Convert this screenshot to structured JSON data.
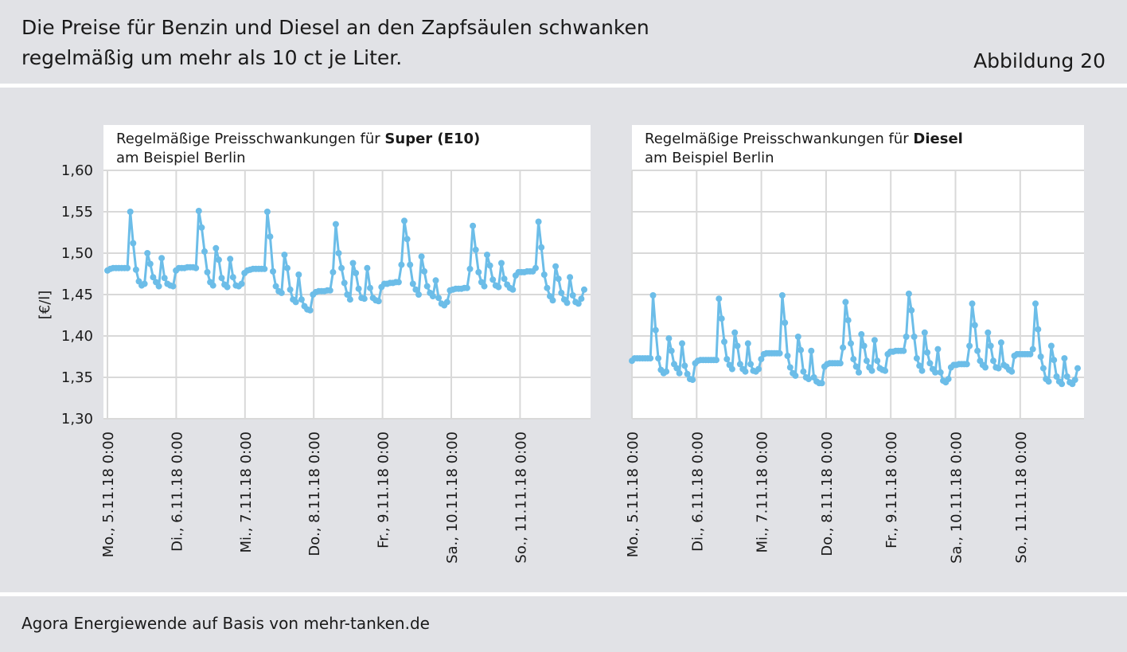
{
  "header": {
    "title_line1": "Die Preise für Benzin und Diesel an den Zapfsäulen schwanken",
    "title_line2": "regelmäßig um mehr als 10 ct je Liter.",
    "figure_label": "Abbildung 20"
  },
  "footer": {
    "source": "Agora Energiewende auf Basis von mehr-tanken.de"
  },
  "colors": {
    "background": "#e1e2e6",
    "plot_bg": "#ffffff",
    "series": "#6cbde8"
  },
  "chart_data": [
    {
      "type": "line",
      "title_prefix": "Regelmäßige Preisschwankungen für ",
      "title_bold": "Super (E10)",
      "title_line2": "am Beispiel Berlin",
      "ylabel": "[€/l]",
      "ylim": [
        1.3,
        1.6
      ],
      "yticks": [
        "1,60",
        "1,55",
        "1,50",
        "1,45",
        "1,40",
        "1,35",
        "1,30"
      ],
      "xticks": [
        "Mo., 5.11.18 0:00",
        "Di., 6.11.18 0:00",
        "Mi., 7.11.18 0:00",
        "Do., 8.11.18 0:00",
        "Fr., 9.11.18 0:00",
        "Sa., 10.11.18 0:00",
        "So., 11.11.18 0:00"
      ],
      "grid": true,
      "series": [
        {
          "values": [
            1.479,
            1.481,
            1.482,
            1.482,
            1.482,
            1.482,
            1.482,
            1.482,
            1.55,
            1.512,
            1.48,
            1.466,
            1.461,
            1.463,
            1.5,
            1.487,
            1.471,
            1.465,
            1.46,
            1.494,
            1.47,
            1.463,
            1.461,
            1.46,
            1.479,
            1.482,
            1.482,
            1.482,
            1.483,
            1.483,
            1.483,
            1.482,
            1.551,
            1.531,
            1.502,
            1.477,
            1.465,
            1.461,
            1.506,
            1.492,
            1.47,
            1.462,
            1.459,
            1.493,
            1.471,
            1.461,
            1.46,
            1.463,
            1.476,
            1.479,
            1.48,
            1.481,
            1.481,
            1.481,
            1.481,
            1.481,
            1.55,
            1.52,
            1.478,
            1.46,
            1.454,
            1.452,
            1.498,
            1.482,
            1.456,
            1.444,
            1.441,
            1.474,
            1.444,
            1.436,
            1.432,
            1.431,
            1.45,
            1.453,
            1.454,
            1.454,
            1.454,
            1.455,
            1.455,
            1.477,
            1.535,
            1.5,
            1.482,
            1.464,
            1.45,
            1.444,
            1.488,
            1.476,
            1.457,
            1.446,
            1.445,
            1.482,
            1.458,
            1.446,
            1.443,
            1.442,
            1.459,
            1.463,
            1.463,
            1.464,
            1.464,
            1.465,
            1.465,
            1.486,
            1.539,
            1.517,
            1.486,
            1.463,
            1.456,
            1.45,
            1.496,
            1.478,
            1.46,
            1.452,
            1.448,
            1.467,
            1.446,
            1.439,
            1.437,
            1.441,
            1.455,
            1.456,
            1.457,
            1.457,
            1.457,
            1.458,
            1.458,
            1.481,
            1.533,
            1.504,
            1.477,
            1.465,
            1.46,
            1.498,
            1.485,
            1.468,
            1.461,
            1.459,
            1.488,
            1.469,
            1.462,
            1.458,
            1.456,
            1.473,
            1.477,
            1.477,
            1.477,
            1.478,
            1.478,
            1.478,
            1.482,
            1.538,
            1.507,
            1.474,
            1.458,
            1.448,
            1.443,
            1.484,
            1.469,
            1.452,
            1.444,
            1.44,
            1.471,
            1.449,
            1.441,
            1.439,
            1.445,
            1.456
          ]
        }
      ]
    },
    {
      "type": "line",
      "title_prefix": "Regelmäßige Preisschwankungen für ",
      "title_bold": "Diesel",
      "title_line2": "am Beispiel Berlin",
      "ylim": [
        1.3,
        1.6
      ],
      "xticks": [
        "Mo., 5.11.18 0:00",
        "Di., 6.11.18 0:00",
        "Mi., 7.11.18 0:00",
        "Do., 8.11.18 0:00",
        "Fr., 9.11.18 0:00",
        "Sa., 10.11.18 0:00",
        "So., 11.11.18 0:00"
      ],
      "grid": true,
      "series": [
        {
          "values": [
            1.37,
            1.373,
            1.373,
            1.373,
            1.373,
            1.373,
            1.373,
            1.373,
            1.449,
            1.407,
            1.373,
            1.359,
            1.355,
            1.357,
            1.397,
            1.382,
            1.366,
            1.361,
            1.355,
            1.391,
            1.364,
            1.354,
            1.348,
            1.347,
            1.367,
            1.37,
            1.371,
            1.371,
            1.371,
            1.371,
            1.371,
            1.371,
            1.371,
            1.445,
            1.421,
            1.393,
            1.372,
            1.365,
            1.36,
            1.404,
            1.388,
            1.366,
            1.36,
            1.357,
            1.391,
            1.366,
            1.358,
            1.357,
            1.36,
            1.372,
            1.378,
            1.379,
            1.379,
            1.379,
            1.379,
            1.379,
            1.379,
            1.449,
            1.416,
            1.376,
            1.362,
            1.355,
            1.352,
            1.399,
            1.383,
            1.357,
            1.35,
            1.348,
            1.382,
            1.35,
            1.345,
            1.343,
            1.343,
            1.363,
            1.366,
            1.367,
            1.367,
            1.367,
            1.367,
            1.367,
            1.386,
            1.441,
            1.419,
            1.391,
            1.372,
            1.363,
            1.356,
            1.402,
            1.388,
            1.37,
            1.362,
            1.358,
            1.395,
            1.37,
            1.361,
            1.359,
            1.358,
            1.378,
            1.381,
            1.381,
            1.382,
            1.382,
            1.382,
            1.382,
            1.399,
            1.451,
            1.431,
            1.399,
            1.373,
            1.364,
            1.358,
            1.404,
            1.38,
            1.367,
            1.36,
            1.356,
            1.384,
            1.356,
            1.346,
            1.344,
            1.348,
            1.362,
            1.365,
            1.365,
            1.366,
            1.366,
            1.366,
            1.366,
            1.388,
            1.439,
            1.413,
            1.382,
            1.37,
            1.365,
            1.362,
            1.404,
            1.388,
            1.37,
            1.362,
            1.361,
            1.392,
            1.365,
            1.363,
            1.359,
            1.357,
            1.376,
            1.378,
            1.378,
            1.378,
            1.378,
            1.378,
            1.378,
            1.384,
            1.439,
            1.408,
            1.375,
            1.361,
            1.348,
            1.345,
            1.388,
            1.371,
            1.351,
            1.345,
            1.342,
            1.373,
            1.351,
            1.344,
            1.342,
            1.347,
            1.361
          ]
        }
      ]
    }
  ]
}
